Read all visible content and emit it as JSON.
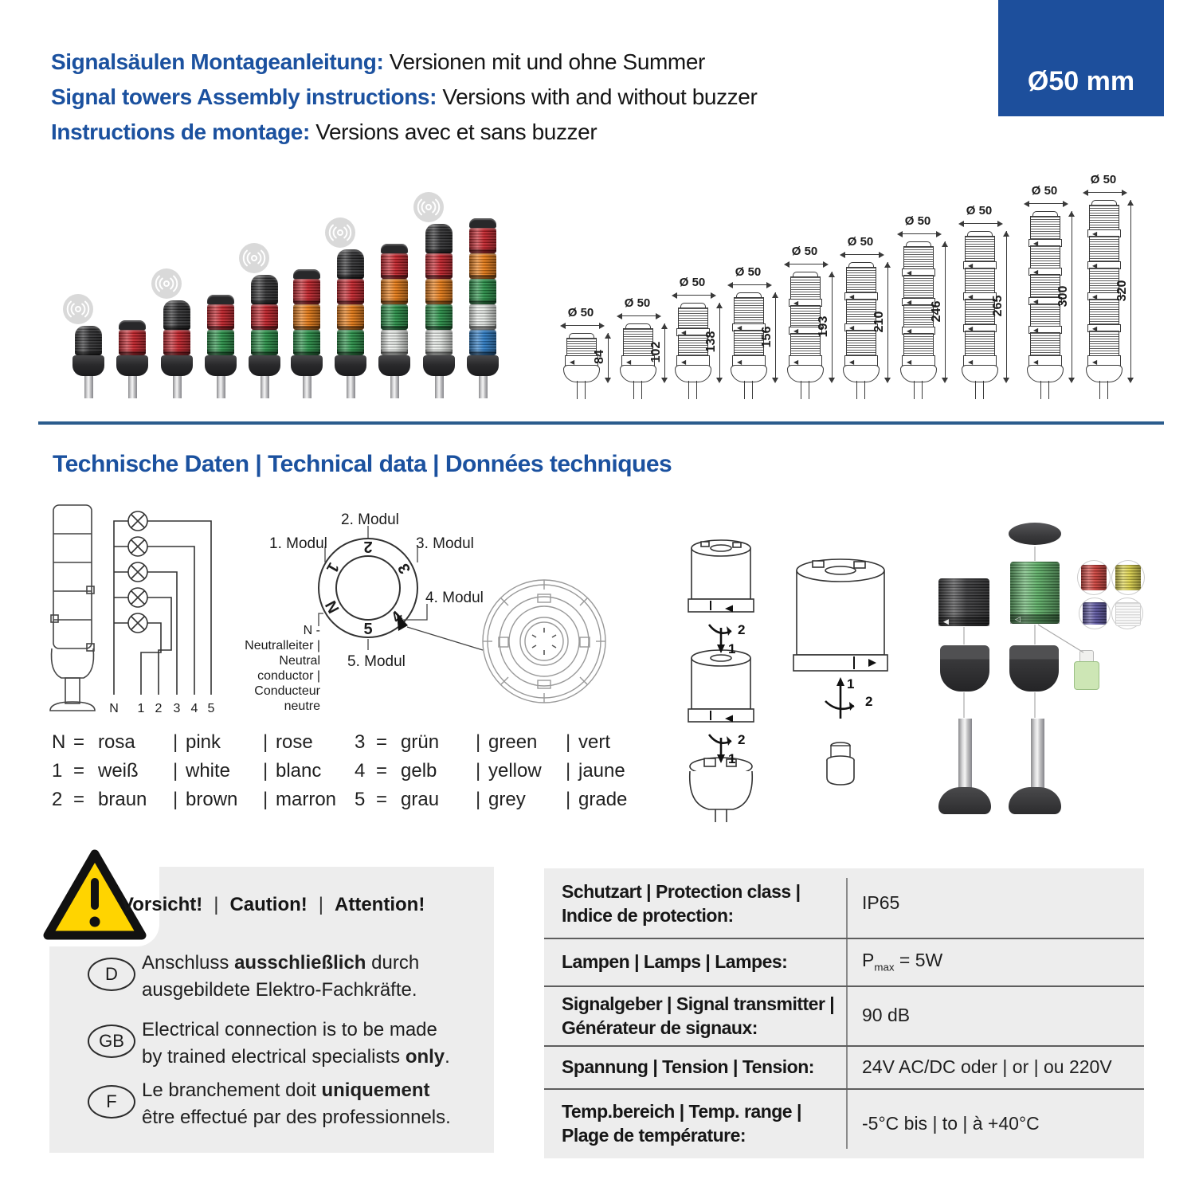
{
  "colors": {
    "blue": "#1b519f",
    "rule_blue": "#2b5c8d",
    "badge_bg": "#1d4f9c",
    "panel_gray": "#ededed",
    "warn_yellow": "#ffd400",
    "red": "#c92028",
    "orange": "#ef7d12",
    "green": "#279447",
    "clear": "#e9ede9",
    "blue_lens": "#2a7dca",
    "black_part": "#2e2e30"
  },
  "header": {
    "lines": [
      {
        "lead": "Signalsäulen Montageanleitung:",
        "rest": " Versionen mit und ohne Summer"
      },
      {
        "lead": "Signal towers Assembly instructions:",
        "rest": " Versions with and without buzzer"
      },
      {
        "lead": "Instructions de montage:",
        "rest": " Versions avec et sans buzzer"
      }
    ],
    "badge": "Ø50 mm"
  },
  "photo_towers": {
    "items": [
      {
        "modules": [
          "buzzer"
        ]
      },
      {
        "modules": [
          "red"
        ]
      },
      {
        "modules": [
          "buzzer",
          "red"
        ]
      },
      {
        "modules": [
          "red",
          "green"
        ]
      },
      {
        "modules": [
          "buzzer",
          "red",
          "green"
        ]
      },
      {
        "modules": [
          "red",
          "orange",
          "green"
        ]
      },
      {
        "modules": [
          "buzzer",
          "red",
          "orange",
          "green"
        ]
      },
      {
        "modules": [
          "red",
          "orange",
          "green",
          "clear"
        ]
      },
      {
        "modules": [
          "buzzer",
          "red",
          "orange",
          "green",
          "clear"
        ]
      },
      {
        "modules": [
          "red",
          "orange",
          "green",
          "clear",
          "blue"
        ]
      }
    ]
  },
  "drawings": {
    "dia_label": "Ø 50",
    "items": [
      {
        "height": "84",
        "modules": 1
      },
      {
        "height": "102",
        "modules": 1
      },
      {
        "height": "138",
        "modules": 2
      },
      {
        "height": "156",
        "modules": 2
      },
      {
        "height": "193",
        "modules": 3
      },
      {
        "height": "210",
        "modules": 3
      },
      {
        "height": "246",
        "modules": 4
      },
      {
        "height": "265",
        "modules": 4
      },
      {
        "height": "300",
        "modules": 5
      },
      {
        "height": "320",
        "modules": 5
      }
    ]
  },
  "section_title": "Technische Daten | Technical data | Données techniques",
  "circuit": {
    "terminals": [
      "N",
      "1",
      "2",
      "3",
      "4",
      "5"
    ]
  },
  "ring": {
    "labels": [
      "1. Modul",
      "2. Modul",
      "3. Modul",
      "4. Modul",
      "5. Modul"
    ],
    "positions": [
      "1",
      "2",
      "3",
      "4",
      "5",
      "N"
    ],
    "neutral_lines": [
      "N -",
      "Neutralleiter |",
      "Neutral conductor |",
      "Conducteur neutre"
    ]
  },
  "assembly": {
    "left_steps": [
      "2",
      "1",
      "2",
      "1"
    ],
    "right_steps": [
      "1",
      "2"
    ]
  },
  "legend": {
    "eq": "=",
    "sep": "|",
    "columns": [
      [
        {
          "key": "N",
          "de": "rosa",
          "en": "pink",
          "fr": "rose"
        },
        {
          "key": "1",
          "de": "weiß",
          "en": "white",
          "fr": "blanc"
        },
        {
          "key": "2",
          "de": "braun",
          "en": "brown",
          "fr": "marron"
        }
      ],
      [
        {
          "key": "3",
          "de": "grün",
          "en": "green",
          "fr": "vert"
        },
        {
          "key": "4",
          "de": "gelb",
          "en": "yellow",
          "fr": "jaune"
        },
        {
          "key": "5",
          "de": "grau",
          "en": "grey",
          "fr": "grade"
        }
      ]
    ]
  },
  "caution": {
    "title_parts": [
      "Vorsicht!",
      "Caution!",
      "Attention!"
    ],
    "sep": "|",
    "items": [
      {
        "lang": "D",
        "lines": [
          [
            {
              "t": "Anschluss "
            },
            {
              "t": "ausschließlich",
              "b": true
            },
            {
              "t": " durch"
            }
          ],
          [
            {
              "t": "ausgebildete Elektro-Fachkräfte."
            }
          ]
        ]
      },
      {
        "lang": "GB",
        "lines": [
          [
            {
              "t": "Electrical connection is to be made"
            }
          ],
          [
            {
              "t": "by trained electrical specialists "
            },
            {
              "t": "only",
              "b": true
            },
            {
              "t": "."
            }
          ]
        ]
      },
      {
        "lang": "F",
        "lines": [
          [
            {
              "t": "Le branchement doit "
            },
            {
              "t": "uniquement",
              "b": true
            }
          ],
          [
            {
              "t": "être effectué par des professionnels."
            }
          ]
        ]
      }
    ]
  },
  "spec_table": {
    "rows": [
      {
        "label_lines": [
          "Schutzart | Protection class |",
          "Indice de protection:"
        ],
        "value": "IP65"
      },
      {
        "label_lines": [
          "Lampen | Lamps | Lampes:"
        ],
        "value_parts": [
          {
            "t": "P"
          },
          {
            "t": "max",
            "sub": true
          },
          {
            "t": " = 5W"
          }
        ]
      },
      {
        "label_lines": [
          "Signalgeber | Signal transmitter |",
          "Générateur de signaux:"
        ],
        "value": "90 dB"
      },
      {
        "label_lines": [
          "Spannung | Tension | Tension:"
        ],
        "value": "24V AC/DC oder | or | ou 220V"
      },
      {
        "label_lines": [
          "Temp.bereich | Temp. range |",
          "Plage de température:"
        ],
        "value": "-5°C bis | to | à  +40°C"
      }
    ]
  }
}
